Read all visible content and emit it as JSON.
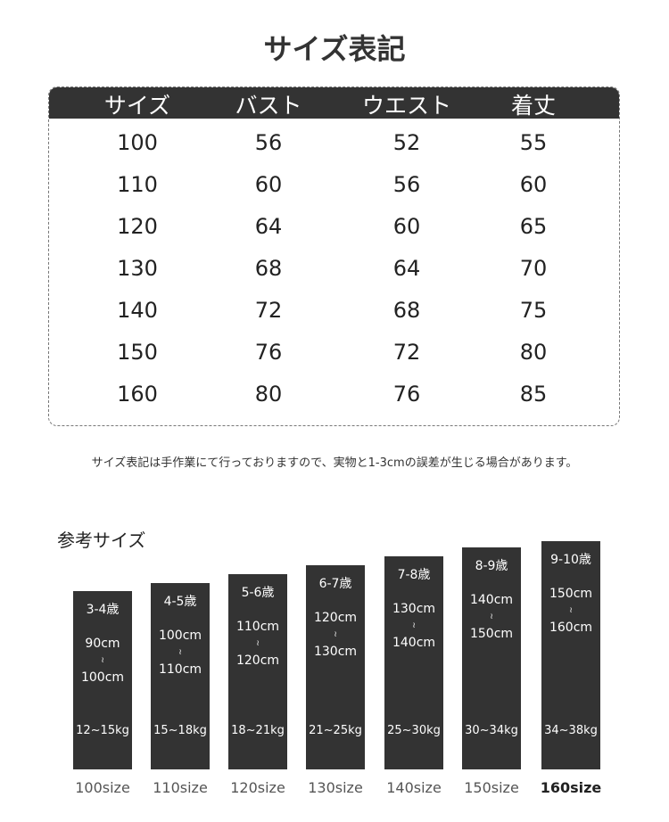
{
  "title": "サイズ表記",
  "table": {
    "headers": [
      "サイズ",
      "バスト",
      "ウエスト",
      "着丈"
    ],
    "rows": [
      [
        "100",
        "56",
        "52",
        "55"
      ],
      [
        "110",
        "60",
        "56",
        "60"
      ],
      [
        "120",
        "64",
        "60",
        "65"
      ],
      [
        "130",
        "68",
        "64",
        "70"
      ],
      [
        "140",
        "72",
        "68",
        "75"
      ],
      [
        "150",
        "76",
        "72",
        "80"
      ],
      [
        "160",
        "80",
        "76",
        "85"
      ]
    ]
  },
  "note": "サイズ表記は手作業にて行っておりますので、実物と1-3cmの誤差が生じる場合があります。",
  "reference": {
    "title": "参考サイズ",
    "items": [
      {
        "age": "3-4歳",
        "h1": "90cm",
        "sep": "≀",
        "h2": "100cm",
        "weight": "12~15kg",
        "size": "100size"
      },
      {
        "age": "4-5歳",
        "h1": "100cm",
        "sep": "≀",
        "h2": "110cm",
        "weight": "15~18kg",
        "size": "110size"
      },
      {
        "age": "5-6歳",
        "h1": "110cm",
        "sep": "≀",
        "h2": "120cm",
        "weight": "18~21kg",
        "size": "120size"
      },
      {
        "age": "6-7歳",
        "h1": "120cm",
        "sep": "≀",
        "h2": "130cm",
        "weight": "21~25kg",
        "size": "130size"
      },
      {
        "age": "7-8歳",
        "h1": "130cm",
        "sep": "≀",
        "h2": "140cm",
        "weight": "25~30kg",
        "size": "140size"
      },
      {
        "age": "8-9歳",
        "h1": "140cm",
        "sep": "≀",
        "h2": "150cm",
        "weight": "30~34kg",
        "size": "150size"
      },
      {
        "age": "9-10歳",
        "h1": "150cm",
        "sep": "≀",
        "h2": "160cm",
        "weight": "34~38kg",
        "size": "160size"
      }
    ]
  }
}
